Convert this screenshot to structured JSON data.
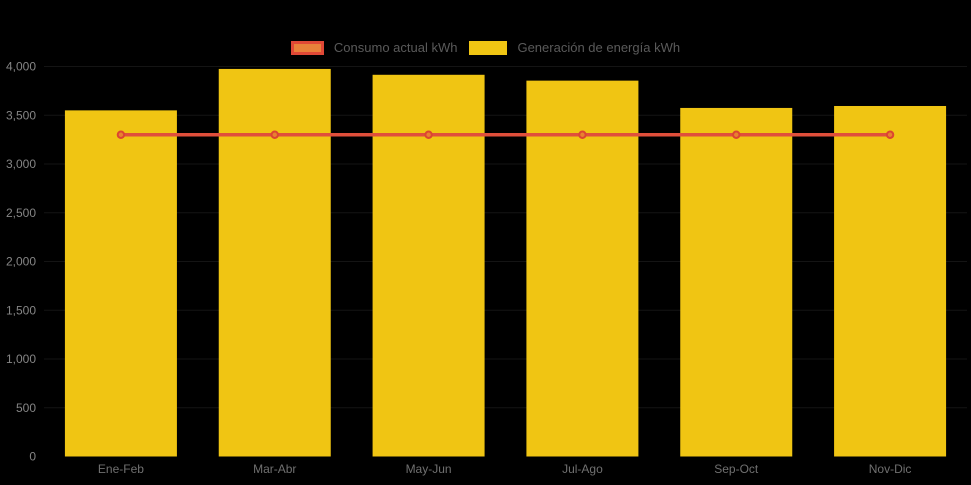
{
  "legend": {
    "items": [
      {
        "label": "Consumo actual kWh",
        "series": "line"
      },
      {
        "label": "Generación de energía kWh",
        "series": "bar"
      }
    ]
  },
  "chart_data": {
    "type": "bar",
    "title": "",
    "xlabel": "",
    "ylabel": "",
    "categories": [
      "Ene-Feb",
      "Mar-Abr",
      "May-Jun",
      "Jul-Ago",
      "Sep-Oct",
      "Nov-Dic"
    ],
    "series": [
      {
        "name": "Generación de energía kWh",
        "type": "bar",
        "color": "#F0C513",
        "values": [
          3550,
          3975,
          3915,
          3855,
          3575,
          3595
        ]
      },
      {
        "name": "Consumo actual kWh",
        "type": "line",
        "color": "#E04F3B",
        "marker_fill": "#E8822F",
        "marker_stroke": "#DC4531",
        "values": [
          3300,
          3300,
          3300,
          3300,
          3300,
          3300
        ]
      }
    ],
    "ylim": [
      0,
      4000
    ],
    "ytick_step": 500,
    "ytick_labels": [
      "0",
      "500",
      "1,000",
      "1,500",
      "2,000",
      "2,500",
      "3,000",
      "3,500",
      "4,000"
    ],
    "legend_position": "top-center",
    "grid": "horizontal gridlines, near-invisible on black background",
    "background_color": "#000000",
    "axis_label_color": "#858585",
    "x_label_color": "#707070"
  }
}
